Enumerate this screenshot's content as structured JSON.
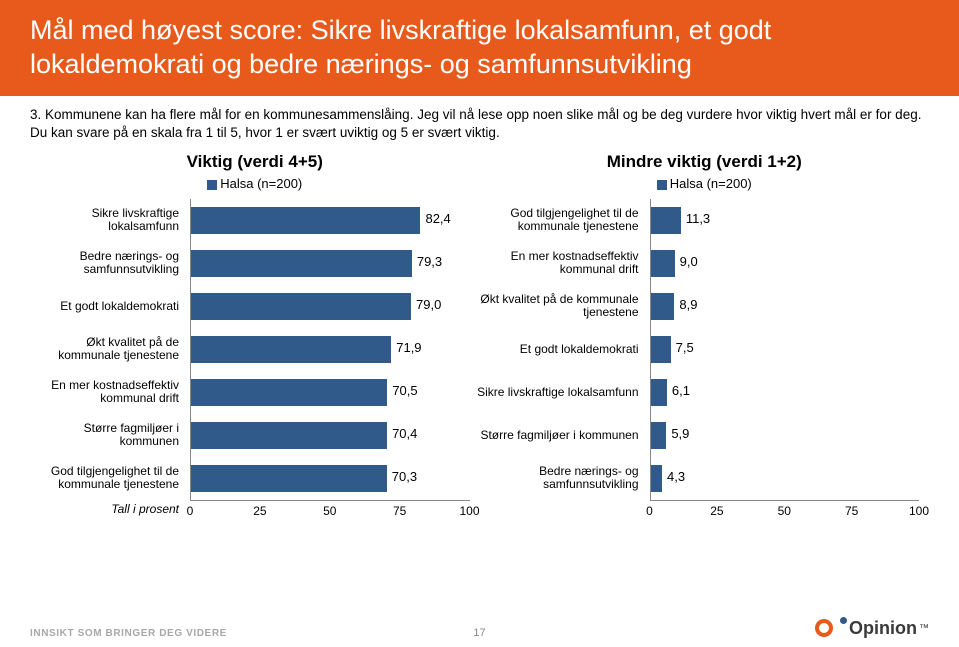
{
  "header": {
    "title": "Mål med høyest score: Sikre livskraftige lokalsamfunn, et godt lokaldemokrati og bedre nærings- og samfunnsutvikling"
  },
  "subheader": {
    "line1": "3. Kommunene kan ha flere mål for en kommunesammenslåing. Jeg vil nå lese opp noen slike mål og be deg vurdere hvor viktig hvert mål er for deg. Du kan svare på en skala fra 1 til 5, hvor 1 er svært uviktig og 5 er svært viktig."
  },
  "chart_left": {
    "type": "bar",
    "title": "Viktig (verdi 4+5)",
    "legend": "Halsa (n=200)",
    "bar_color": "#2f5a8a",
    "xlim": [
      0,
      100
    ],
    "xticks": [
      0,
      25,
      50,
      75,
      100
    ],
    "xaxis_label": "Tall i prosent",
    "rows": [
      {
        "label": "Sikre livskraftige lokalsamfunn",
        "value": 82.4,
        "text": "82,4"
      },
      {
        "label": "Bedre nærings- og samfunnsutvikling",
        "value": 79.3,
        "text": "79,3"
      },
      {
        "label": "Et godt lokaldemokrati",
        "value": 79.0,
        "text": "79,0"
      },
      {
        "label": "Økt kvalitet på de kommunale tjenestene",
        "value": 71.9,
        "text": "71,9"
      },
      {
        "label": "En mer kostnadseffektiv kommunal drift",
        "value": 70.5,
        "text": "70,5"
      },
      {
        "label": "Større fagmiljøer i kommunen",
        "value": 70.4,
        "text": "70,4"
      },
      {
        "label": "God tilgjengelighet til de kommunale tjenestene",
        "value": 70.3,
        "text": "70,3"
      }
    ]
  },
  "chart_right": {
    "type": "bar",
    "title": "Mindre viktig (verdi 1+2)",
    "legend": "Halsa (n=200)",
    "bar_color": "#2f5a8a",
    "xlim": [
      0,
      100
    ],
    "xticks": [
      0,
      25,
      50,
      75,
      100
    ],
    "rows": [
      {
        "label": "God tilgjengelighet til de kommunale tjenestene",
        "value": 11.3,
        "text": "11,3"
      },
      {
        "label": "En mer kostnadseffektiv kommunal drift",
        "value": 9.0,
        "text": "9,0"
      },
      {
        "label": "Økt kvalitet på de kommunale tjenestene",
        "value": 8.9,
        "text": "8,9"
      },
      {
        "label": "Et godt lokaldemokrati",
        "value": 7.5,
        "text": "7,5"
      },
      {
        "label": "Sikre livskraftige lokalsamfunn",
        "value": 6.1,
        "text": "6,1"
      },
      {
        "label": "Større fagmiljøer i kommunen",
        "value": 5.9,
        "text": "5,9"
      },
      {
        "label": "Bedre nærings- og samfunnsutvikling",
        "value": 4.3,
        "text": "4,3"
      }
    ]
  },
  "footer": {
    "tagline": "INNSIKT SOM BRINGER DEG VIDERE",
    "page": "17",
    "logo_text": "Opinion",
    "logo_sup": "™"
  },
  "style": {
    "header_bg": "#e85a1c",
    "header_fg": "#ffffff",
    "body_bg": "#ffffff",
    "axis_color": "#888888",
    "text_color": "#000000",
    "title_fontsize": 27,
    "chart_title_fontsize": 17,
    "label_fontsize": 12,
    "value_fontsize": 13
  }
}
